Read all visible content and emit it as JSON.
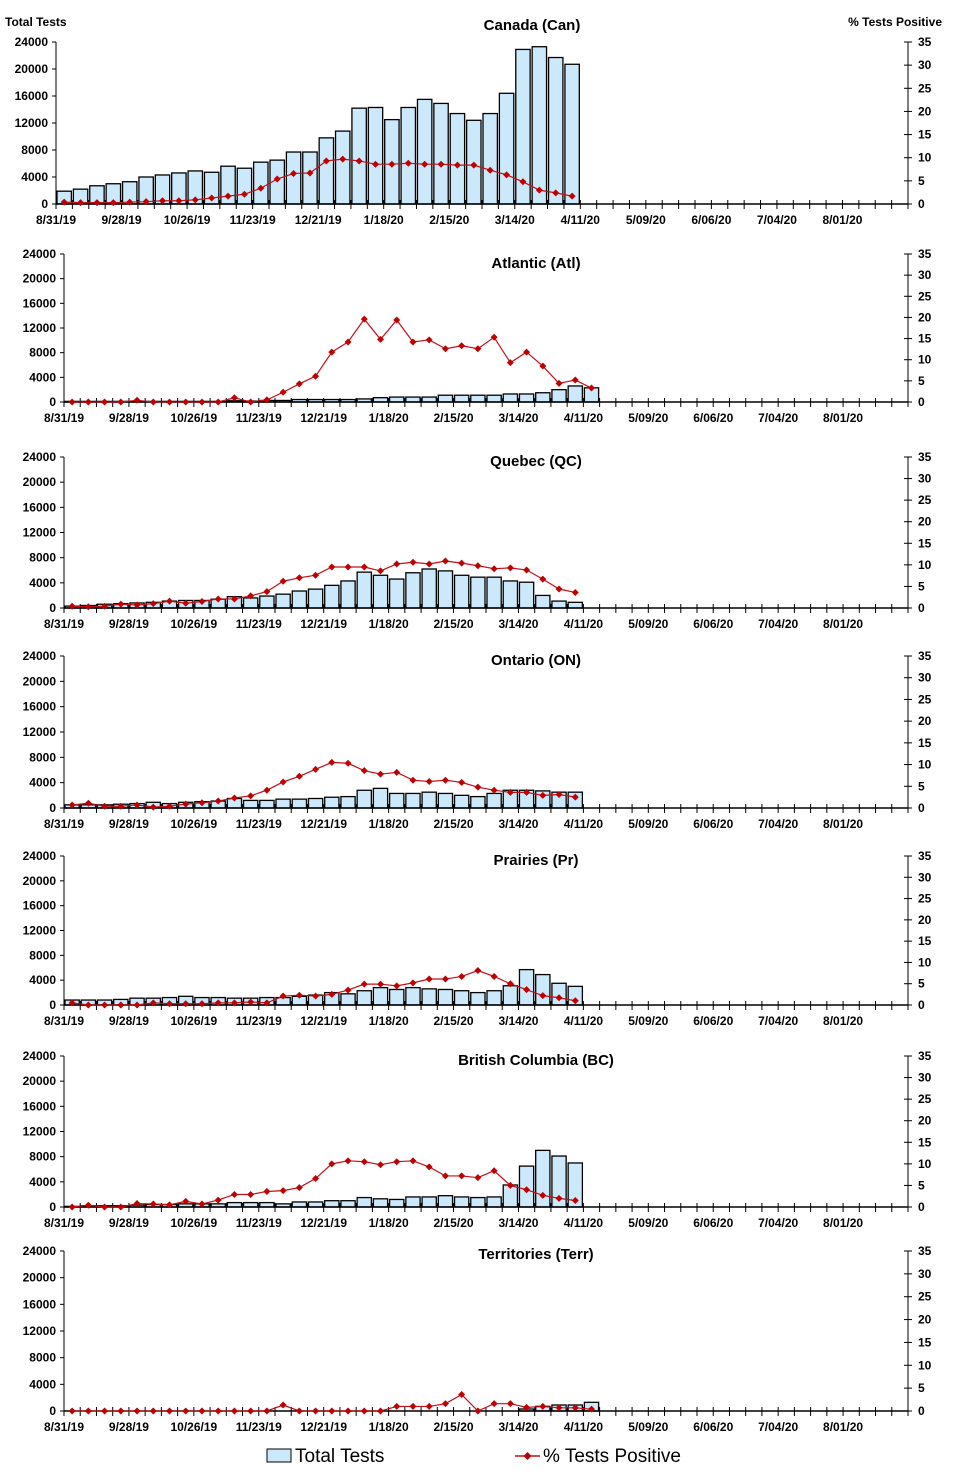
{
  "left_axis_title": "Total Tests",
  "right_axis_title": "% Tests Positive",
  "legend": {
    "bars": "Total Tests",
    "line": "% Tests Positive"
  },
  "colors": {
    "bar_fill": "#cce8fb",
    "bar_stroke": "#000000",
    "line": "#c0101c",
    "marker": "#c00000"
  },
  "chart_data": [
    {
      "type": "bar",
      "title": "Canada (Can)",
      "ylabel": "Total Tests",
      "y2label": "% Tests Positive",
      "ylim": [
        0,
        24000
      ],
      "y2lim": [
        0,
        35
      ],
      "yticks": [
        "0",
        "4000",
        "8000",
        "12000",
        "16000",
        "20000",
        "24000"
      ],
      "y2ticks": [
        "0",
        "5",
        "10",
        "15",
        "20",
        "25",
        "30",
        "35"
      ],
      "xticks": [
        "8/31/19",
        "9/28/19",
        "10/26/19",
        "11/23/19",
        "12/21/19",
        "1/18/20",
        "2/15/20",
        "3/14/20",
        "4/11/20",
        "5/09/20",
        "6/06/20",
        "7/04/20",
        "8/01/20"
      ],
      "n_weeks": 52,
      "series": [
        {
          "name": "Total Tests",
          "kind": "bar",
          "values": [
            1900,
            2200,
            2700,
            3000,
            3300,
            4000,
            4300,
            4600,
            4900,
            4700,
            5600,
            5300,
            6200,
            6500,
            7700,
            7700,
            9800,
            10800,
            14200,
            14300,
            12500,
            14300,
            15500,
            14900,
            13400,
            12400,
            13400,
            16400,
            22900,
            23300,
            21700,
            20700
          ]
        },
        {
          "name": "% Tests Positive",
          "kind": "line",
          "values": [
            0.4,
            0.3,
            0.3,
            0.3,
            0.4,
            0.5,
            0.7,
            0.7,
            0.9,
            1.3,
            1.7,
            2.1,
            3.4,
            5.4,
            6.6,
            6.7,
            9.3,
            9.7,
            9.3,
            8.6,
            8.6,
            8.8,
            8.6,
            8.6,
            8.4,
            8.4,
            7.3,
            6.3,
            4.8,
            3.0,
            2.4,
            1.7
          ]
        }
      ]
    },
    {
      "type": "bar",
      "title": "Atlantic (Atl)",
      "ylim": [
        0,
        24000
      ],
      "y2lim": [
        0,
        35
      ],
      "yticks": [
        "0",
        "4000",
        "8000",
        "12000",
        "16000",
        "20000",
        "24000"
      ],
      "y2ticks": [
        "0",
        "5",
        "10",
        "15",
        "20",
        "25",
        "30",
        "35"
      ],
      "xticks": [
        "8/31/19",
        "9/28/19",
        "10/26/19",
        "11/23/19",
        "12/21/19",
        "1/18/20",
        "2/15/20",
        "3/14/20",
        "4/11/20",
        "5/09/20",
        "6/06/20",
        "7/04/20",
        "8/01/20"
      ],
      "n_weeks": 52,
      "series": [
        {
          "name": "Total Tests",
          "kind": "bar",
          "values": [
            100,
            100,
            100,
            100,
            100,
            100,
            100,
            100,
            100,
            100,
            200,
            150,
            250,
            250,
            400,
            400,
            400,
            400,
            500,
            700,
            800,
            800,
            800,
            1100,
            1100,
            1100,
            1100,
            1300,
            1300,
            1500,
            2000,
            2600,
            2300
          ]
        },
        {
          "name": "% Tests Positive",
          "kind": "line",
          "values": [
            0,
            0,
            0,
            0,
            0.4,
            0,
            0,
            0,
            0,
            0,
            1.0,
            0,
            0.5,
            2.3,
            4.3,
            6.1,
            11.8,
            14.2,
            19.6,
            14.8,
            19.4,
            14.2,
            14.7,
            12.6,
            13.3,
            12.6,
            15.3,
            9.3,
            11.8,
            8.5,
            4.4,
            5.2,
            3.3
          ]
        }
      ]
    },
    {
      "type": "bar",
      "title": "Quebec (QC)",
      "ylim": [
        0,
        24000
      ],
      "y2lim": [
        0,
        35
      ],
      "yticks": [
        "0",
        "4000",
        "8000",
        "12000",
        "16000",
        "20000",
        "24000"
      ],
      "y2ticks": [
        "0",
        "5",
        "10",
        "15",
        "20",
        "25",
        "30",
        "35"
      ],
      "xticks": [
        "8/31/19",
        "9/28/19",
        "10/26/19",
        "11/23/19",
        "12/21/19",
        "1/18/20",
        "2/15/20",
        "3/14/20",
        "4/11/20",
        "5/09/20",
        "6/06/20",
        "7/04/20",
        "8/01/20"
      ],
      "n_weeks": 52,
      "series": [
        {
          "name": "Total Tests",
          "kind": "bar",
          "values": [
            300,
            400,
            600,
            700,
            800,
            900,
            1100,
            1200,
            1200,
            1400,
            1800,
            1600,
            1900,
            2200,
            2700,
            3000,
            3600,
            4300,
            5700,
            5200,
            4600,
            5600,
            6200,
            5900,
            5200,
            4900,
            4900,
            4300,
            4100,
            2000,
            1100,
            900
          ]
        },
        {
          "name": "% Tests Positive",
          "kind": "line",
          "values": [
            0.4,
            0.3,
            0.4,
            0.9,
            0.7,
            1.0,
            1.6,
            1.1,
            1.5,
            2.1,
            2.1,
            2.8,
            3.8,
            6.2,
            7.0,
            7.6,
            9.5,
            9.5,
            9.5,
            8.6,
            10.2,
            10.6,
            10.2,
            10.9,
            10.4,
            9.8,
            9.1,
            9.3,
            8.8,
            6.7,
            4.4,
            3.6
          ]
        }
      ]
    },
    {
      "type": "bar",
      "title": "Ontario (ON)",
      "ylim": [
        0,
        24000
      ],
      "y2lim": [
        0,
        35
      ],
      "yticks": [
        "0",
        "4000",
        "8000",
        "12000",
        "16000",
        "20000",
        "24000"
      ],
      "y2ticks": [
        "0",
        "5",
        "10",
        "15",
        "20",
        "25",
        "30",
        "35"
      ],
      "xticks": [
        "8/31/19",
        "9/28/19",
        "10/26/19",
        "11/23/19",
        "12/21/19",
        "1/18/20",
        "2/15/20",
        "3/14/20",
        "4/11/20",
        "5/09/20",
        "6/06/20",
        "7/04/20",
        "8/01/20"
      ],
      "n_weeks": 52,
      "series": [
        {
          "name": "Total Tests",
          "kind": "bar",
          "values": [
            500,
            500,
            500,
            600,
            700,
            900,
            700,
            900,
            1000,
            1100,
            1500,
            1200,
            1200,
            1400,
            1400,
            1500,
            1700,
            1800,
            2800,
            3100,
            2300,
            2300,
            2500,
            2300,
            2000,
            1800,
            2300,
            2800,
            2800,
            2700,
            2500,
            2500
          ]
        },
        {
          "name": "% Tests Positive",
          "kind": "line",
          "values": [
            0.7,
            1.1,
            0.4,
            0.4,
            0.7,
            0.2,
            0.4,
            0.9,
            1.2,
            1.6,
            2.3,
            2.8,
            4.1,
            6.0,
            7.3,
            8.9,
            10.5,
            10.3,
            8.6,
            7.8,
            8.2,
            6.4,
            6.1,
            6.4,
            5.9,
            4.8,
            4.1,
            3.6,
            3.6,
            2.9,
            3.1,
            2.5
          ]
        }
      ]
    },
    {
      "type": "bar",
      "title": "Prairies (Pr)",
      "ylim": [
        0,
        24000
      ],
      "y2lim": [
        0,
        35
      ],
      "yticks": [
        "0",
        "4000",
        "8000",
        "12000",
        "16000",
        "20000",
        "24000"
      ],
      "y2ticks": [
        "0",
        "5",
        "10",
        "15",
        "20",
        "25",
        "30",
        "35"
      ],
      "xticks": [
        "8/31/19",
        "9/28/19",
        "10/26/19",
        "11/23/19",
        "12/21/19",
        "1/18/20",
        "2/15/20",
        "3/14/20",
        "4/11/20",
        "5/09/20",
        "6/06/20",
        "7/04/20",
        "8/01/20"
      ],
      "n_weeks": 52,
      "series": [
        {
          "name": "Total Tests",
          "kind": "bar",
          "values": [
            800,
            800,
            800,
            900,
            1100,
            1100,
            1200,
            1400,
            1200,
            1200,
            1100,
            1100,
            1200,
            1200,
            1400,
            1600,
            2000,
            1800,
            2300,
            2800,
            2500,
            2800,
            2600,
            2500,
            2300,
            2000,
            2300,
            3100,
            5700,
            4900,
            3500,
            3000
          ]
        },
        {
          "name": "% Tests Positive",
          "kind": "line",
          "values": [
            0.5,
            0,
            0,
            0,
            0,
            0.5,
            0.3,
            0.3,
            0.3,
            0.5,
            0.5,
            0.7,
            0.5,
            2.1,
            2.3,
            2.1,
            2.5,
            3.5,
            4.9,
            4.9,
            4.5,
            5.2,
            6.1,
            6.1,
            6.7,
            8.1,
            6.7,
            5.0,
            3.6,
            2.2,
            1.7,
            1.0
          ]
        }
      ]
    },
    {
      "type": "bar",
      "title": "British Columbia (BC)",
      "ylim": [
        0,
        24000
      ],
      "y2lim": [
        0,
        35
      ],
      "yticks": [
        "0",
        "4000",
        "8000",
        "12000",
        "16000",
        "20000",
        "24000"
      ],
      "y2ticks": [
        "0",
        "5",
        "10",
        "15",
        "20",
        "25",
        "30",
        "35"
      ],
      "xticks": [
        "8/31/19",
        "9/28/19",
        "10/26/19",
        "11/23/19",
        "12/21/19",
        "1/18/20",
        "2/15/20",
        "3/14/20",
        "4/11/20",
        "5/09/20",
        "6/06/20",
        "7/04/20",
        "8/01/20"
      ],
      "n_weeks": 52,
      "series": [
        {
          "name": "Total Tests",
          "kind": "bar",
          "values": [
            100,
            200,
            200,
            200,
            300,
            400,
            400,
            500,
            500,
            500,
            700,
            700,
            700,
            500,
            800,
            800,
            1000,
            1000,
            1500,
            1300,
            1200,
            1600,
            1600,
            1800,
            1600,
            1500,
            1600,
            3500,
            6500,
            9000,
            8100,
            7000
          ]
        },
        {
          "name": "% Tests Positive",
          "kind": "line",
          "values": [
            0,
            0.4,
            0,
            0,
            0.8,
            0.7,
            0.5,
            1.3,
            0.7,
            1.6,
            2.9,
            2.9,
            3.6,
            3.8,
            4.5,
            6.6,
            10.0,
            10.7,
            10.5,
            9.8,
            10.5,
            10.7,
            9.3,
            7.2,
            7.2,
            6.8,
            8.4,
            5.0,
            4.0,
            2.7,
            2.0,
            1.5
          ]
        }
      ]
    },
    {
      "type": "bar",
      "title": "Territories (Terr)",
      "ylim": [
        0,
        24000
      ],
      "y2lim": [
        0,
        35
      ],
      "yticks": [
        "0",
        "4000",
        "8000",
        "12000",
        "16000",
        "20000",
        "24000"
      ],
      "y2ticks": [
        "0",
        "5",
        "10",
        "15",
        "20",
        "25",
        "30",
        "35"
      ],
      "xticks": [
        "8/31/19",
        "9/28/19",
        "10/26/19",
        "11/23/19",
        "12/21/19",
        "1/18/20",
        "2/15/20",
        "3/14/20",
        "4/11/20",
        "5/09/20",
        "6/06/20",
        "7/04/20",
        "8/01/20"
      ],
      "n_weeks": 52,
      "series": [
        {
          "name": "Total Tests",
          "kind": "bar",
          "values": [
            0,
            0,
            0,
            0,
            0,
            0,
            0,
            0,
            0,
            0,
            0,
            0,
            0,
            0,
            0,
            0,
            0,
            0,
            0,
            0,
            0,
            0,
            0,
            0,
            0,
            0,
            0,
            0,
            300,
            700,
            900,
            900,
            1300
          ]
        },
        {
          "name": "% Tests Positive",
          "kind": "line",
          "values": [
            0,
            0,
            0,
            0,
            0,
            0,
            0,
            0,
            0,
            0,
            0,
            0,
            0,
            1.3,
            0,
            0,
            0,
            0,
            0,
            0,
            1.0,
            1.0,
            1.0,
            1.6,
            3.6,
            0,
            1.6,
            1.6,
            0.8,
            1.0,
            0.7,
            0.7,
            0.4
          ]
        }
      ]
    }
  ]
}
